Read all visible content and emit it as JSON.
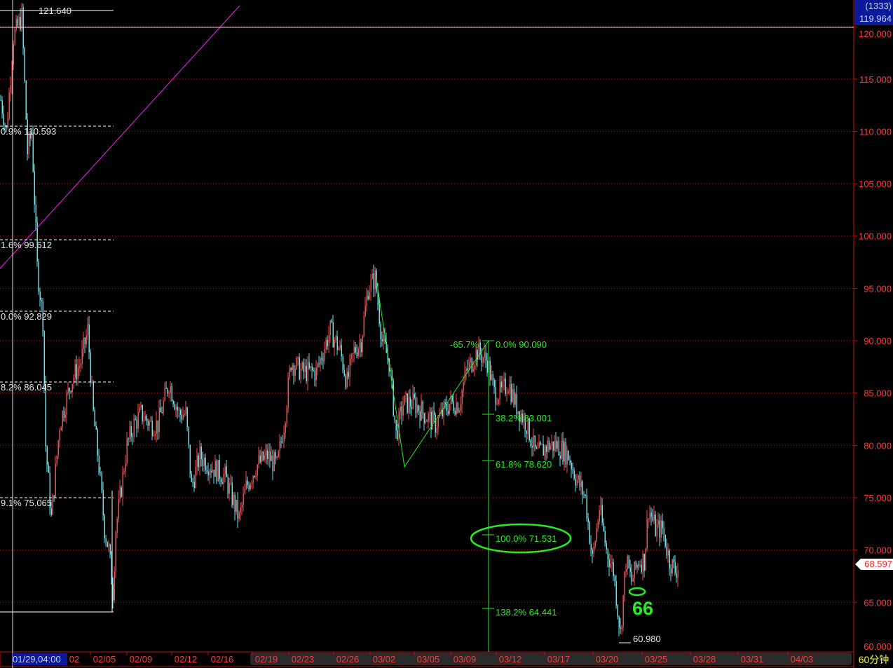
{
  "chart_data": {
    "type": "candlestick",
    "timeframe_label": "60分钟",
    "bar_count_label": "(1333)",
    "crosshair_price": "119.964",
    "current_price": "68.597",
    "y_axis": {
      "ticks": [
        "60.000",
        "65.000",
        "70.000",
        "75.000",
        "80.000",
        "85.000",
        "90.000",
        "95.000",
        "100.000",
        "105.000",
        "110.000",
        "115.000",
        "120.000"
      ],
      "range": [
        60,
        121.64
      ],
      "grid": "dotted"
    },
    "x_axis": {
      "selected_label": "01/29,04:00",
      "ticks": [
        "02",
        "02/05",
        "02/09",
        "02/12",
        "02/16",
        "02/19",
        "02/23",
        "02/26",
        "03/02",
        "03/05",
        "03/09",
        "03/12",
        "03/17",
        "03/20",
        "03/25",
        "03/28",
        "03/31",
        "04/03"
      ]
    },
    "price_path_approx": [
      [
        0,
        113
      ],
      [
        4,
        110
      ],
      [
        9,
        119
      ],
      [
        15,
        121
      ],
      [
        19,
        108
      ],
      [
        22,
        110
      ],
      [
        26,
        97
      ],
      [
        30,
        92
      ],
      [
        32,
        80
      ],
      [
        36,
        73
      ],
      [
        42,
        82
      ],
      [
        50,
        86
      ],
      [
        57,
        88
      ],
      [
        62,
        91
      ],
      [
        66,
        83
      ],
      [
        70,
        78
      ],
      [
        74,
        72
      ],
      [
        77,
        70
      ],
      [
        80,
        66
      ],
      [
        82,
        72
      ],
      [
        90,
        80
      ],
      [
        95,
        82
      ],
      [
        100,
        83
      ],
      [
        107,
        82
      ],
      [
        112,
        82
      ],
      [
        120,
        86
      ],
      [
        127,
        83
      ],
      [
        132,
        83
      ],
      [
        136,
        76
      ],
      [
        142,
        79
      ],
      [
        150,
        78
      ],
      [
        160,
        77
      ],
      [
        170,
        73
      ],
      [
        175,
        76
      ],
      [
        182,
        78
      ],
      [
        190,
        79
      ],
      [
        197,
        78
      ],
      [
        202,
        82
      ],
      [
        207,
        88
      ],
      [
        215,
        87
      ],
      [
        225,
        87
      ],
      [
        235,
        91
      ],
      [
        242,
        89
      ],
      [
        247,
        86
      ],
      [
        252,
        89
      ],
      [
        257,
        90
      ],
      [
        262,
        95
      ],
      [
        267,
        96
      ],
      [
        272,
        90
      ],
      [
        277,
        88
      ],
      [
        282,
        81
      ],
      [
        287,
        84
      ],
      [
        295,
        84
      ],
      [
        302,
        83
      ],
      [
        310,
        82
      ],
      [
        320,
        84
      ],
      [
        327,
        84
      ],
      [
        332,
        87
      ],
      [
        340,
        89
      ],
      [
        347,
        88
      ],
      [
        352,
        85
      ],
      [
        357,
        85
      ],
      [
        362,
        86
      ],
      [
        367,
        84
      ],
      [
        375,
        82
      ],
      [
        382,
        79
      ],
      [
        390,
        80
      ],
      [
        397,
        80
      ],
      [
        405,
        79
      ],
      [
        410,
        77
      ],
      [
        417,
        75
      ],
      [
        422,
        69
      ],
      [
        427,
        74
      ],
      [
        432,
        70
      ],
      [
        437,
        68
      ],
      [
        442,
        62
      ],
      [
        446,
        69
      ],
      [
        450,
        67
      ],
      [
        455,
        69
      ],
      [
        459,
        69
      ],
      [
        462,
        74
      ],
      [
        467,
        72
      ],
      [
        472,
        72
      ],
      [
        477,
        69
      ],
      [
        481,
        68
      ],
      [
        484,
        68.6
      ]
    ],
    "colors": {
      "up": "#ff4a4a",
      "down": "#5ee6f6",
      "fib_left": "#ffffff",
      "fib_right": "#22ee22",
      "trendline": "#ee22ee"
    },
    "annotations": {
      "high_label": "121.640",
      "low_label": "60.980",
      "fib_left": [
        "0.9% 110.593",
        "1.6% 99.612",
        "0.0% 92.829",
        "8.2% 86.045",
        "9.1% 75.065"
      ],
      "fib_right": [
        "0.0% 90.090",
        "38.2% 83.001",
        "61.8% 78.620",
        "100.0% 71.531",
        "138.2% 64.441"
      ],
      "fib_right_ratio": "-65.7%",
      "handwritten_mark": "66"
    }
  }
}
